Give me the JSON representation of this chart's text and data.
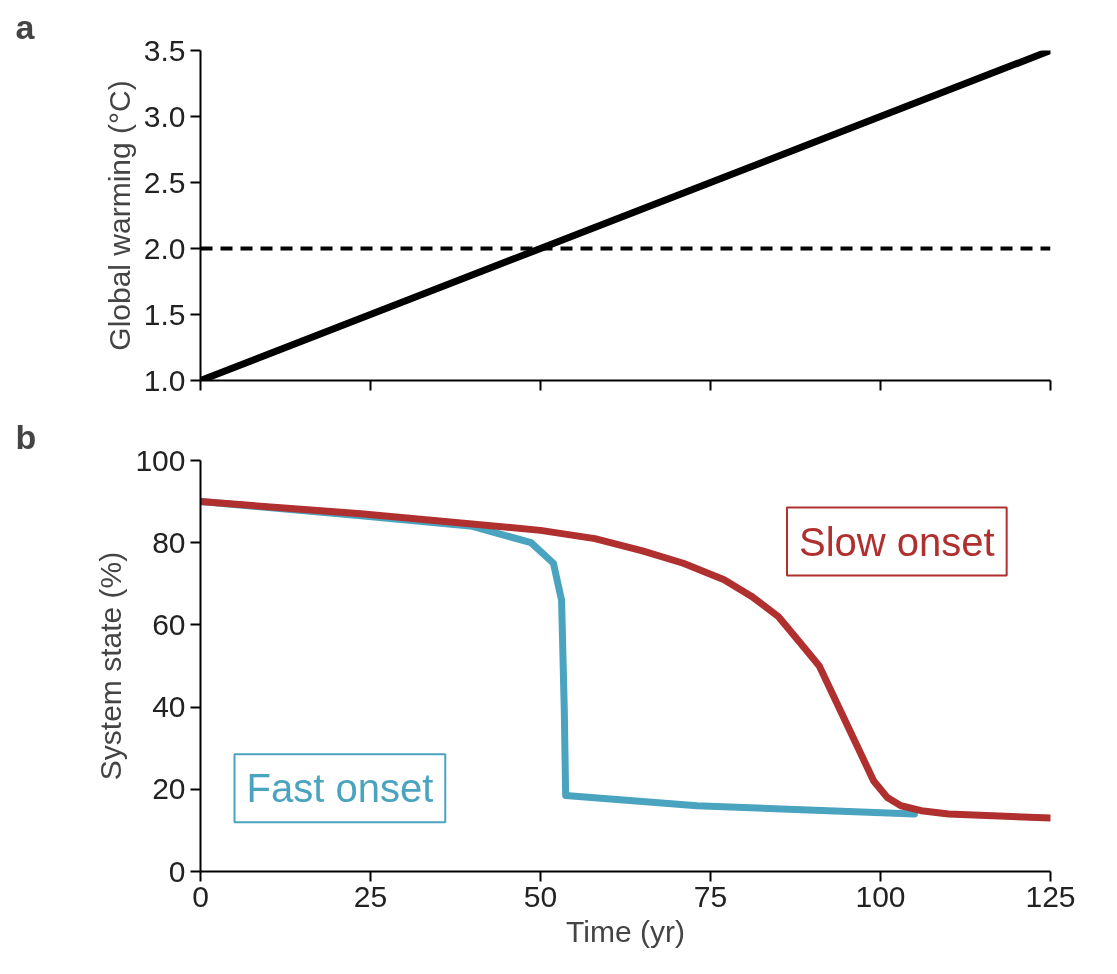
{
  "chart_data": [
    {
      "type": "line",
      "title": "a",
      "ylabel": "Global warming (°C)",
      "xlim": [
        0,
        125
      ],
      "xticks": [
        {
          "value": 0,
          "label": null
        },
        {
          "value": 25,
          "label": null
        },
        {
          "value": 50,
          "label": null
        },
        {
          "value": 75,
          "label": null
        },
        {
          "value": 100,
          "label": null
        },
        {
          "value": 125,
          "label": null
        }
      ],
      "ylim": [
        1.0,
        3.5
      ],
      "yticks": [
        {
          "value": 1.0,
          "label": "1.0"
        },
        {
          "value": 1.5,
          "label": "1.5"
        },
        {
          "value": 2.0,
          "label": "2.0"
        },
        {
          "value": 2.5,
          "label": "2.5"
        },
        {
          "value": 3.0,
          "label": "3.0"
        },
        {
          "value": 3.5,
          "label": "3.5"
        }
      ],
      "tick_labels": "y",
      "grid": false,
      "line_style": "solid",
      "x": [
        0,
        125
      ],
      "series": [
        {
          "color": "#000000",
          "values": [
            1.0,
            3.5
          ]
        }
      ],
      "ref_lines": [
        {
          "axis": "y",
          "value": 2.0,
          "color": "#000000",
          "line_style": "dashed"
        }
      ]
    },
    {
      "type": "line",
      "title": "b",
      "xlabel": "Time (yr)",
      "ylabel": "System state (%)",
      "xlim": [
        0,
        125
      ],
      "xticks": [
        0,
        25,
        50,
        75,
        100,
        125
      ],
      "ylim": [
        0,
        100
      ],
      "yticks": [
        0,
        20,
        40,
        60,
        80,
        100
      ],
      "grid": false,
      "line_style": "solid",
      "series": [
        {
          "name": "Fast onset",
          "color": "#4aa3bf",
          "x": [
            0,
            24,
            40,
            48.6,
            51.9,
            53.1,
            53.5,
            53.7,
            73,
            105
          ],
          "values": [
            90,
            86.5,
            84,
            80,
            75,
            66,
            39,
            18.5,
            16,
            14
          ]
        },
        {
          "name": "Slow onset",
          "color": "#b03030",
          "x": [
            0,
            24,
            50,
            58,
            65,
            71,
            77,
            81,
            85,
            88,
            91,
            93,
            95,
            97,
            99,
            101,
            103,
            106,
            110,
            125
          ],
          "values": [
            90,
            87,
            83,
            81,
            78,
            75,
            71,
            67,
            62,
            56,
            50,
            43,
            36,
            29,
            22,
            18,
            16,
            14.8,
            14,
            13
          ]
        }
      ]
    }
  ]
}
